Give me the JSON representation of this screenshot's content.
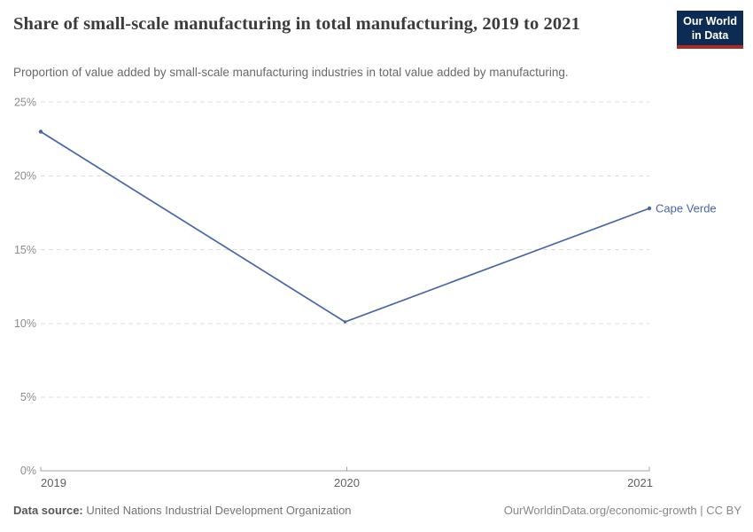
{
  "header": {
    "title": "Share of small-scale manufacturing in total manufacturing, 2019 to 2021",
    "subtitle": "Proportion of value added by small-scale manufacturing industries in total value added by manufacturing.",
    "logo_line1": "Our World",
    "logo_line2": "in Data",
    "logo_colors": {
      "background": "#0d2c53",
      "underline": "#ab2d26"
    }
  },
  "chart_data": {
    "type": "line",
    "title": "Share of small-scale manufacturing in total manufacturing, 2019 to 2021",
    "x": [
      2019,
      2020,
      2021
    ],
    "x_tick_labels": [
      "2019",
      "2020",
      "2021"
    ],
    "series": [
      {
        "name": "Cape Verde",
        "values": [
          23.0,
          10.1,
          17.8
        ],
        "color": "#4766A8"
      }
    ],
    "ylim": [
      0,
      25
    ],
    "y_tick_labels": [
      "0%",
      "5%",
      "10%",
      "15%",
      "20%",
      "25%"
    ],
    "xlabel": "",
    "ylabel": "",
    "grid": "horizontal-dashed",
    "legend_position": "end-of-line-label",
    "unit": "%"
  },
  "footer": {
    "source_label": "Data source:",
    "source_value": "United Nations Industrial Development Organization",
    "credit": "OurWorldinData.org/economic-growth | CC BY"
  }
}
